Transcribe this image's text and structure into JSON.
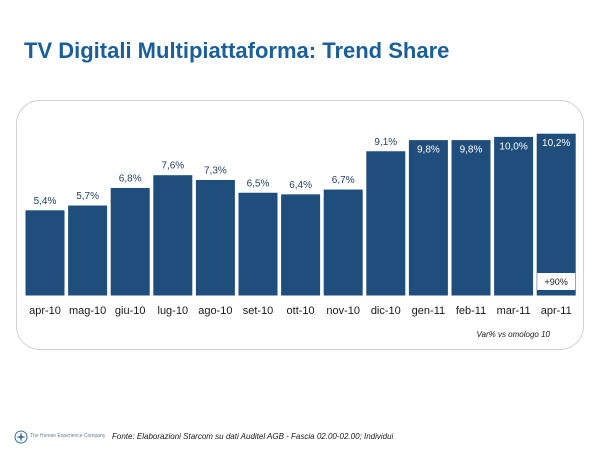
{
  "title": "TV Digitali Multipiattaforma: Trend Share",
  "chart_data": {
    "type": "bar",
    "categories": [
      "apr-10",
      "mag-10",
      "giu-10",
      "lug-10",
      "ago-10",
      "set-10",
      "ott-10",
      "nov-10",
      "dic-10",
      "gen-11",
      "feb-11",
      "mar-11",
      "apr-11"
    ],
    "values": [
      5.4,
      5.7,
      6.8,
      7.6,
      7.3,
      6.5,
      6.4,
      6.7,
      9.1,
      9.8,
      9.8,
      10.0,
      10.2
    ],
    "data_labels": [
      "5,4%",
      "5,7%",
      "6,8%",
      "7,6%",
      "7,3%",
      "6,5%",
      "6,4%",
      "6,7%",
      "9,1%",
      "9,8%",
      "9,8%",
      "10,0%",
      "10,2%"
    ],
    "ylim": [
      0,
      10.4
    ],
    "color": "#1f4e7d",
    "grid": false,
    "annotation": {
      "category": "apr-11",
      "text": "+90%"
    },
    "note": "Var% vs omologo 10"
  },
  "footer": {
    "logo_text": "The Human Experience Company",
    "source": "Fonte: Elaborazioni Starcom su dati Auditel AGB - Fascia 02.00-02.00; Individui"
  },
  "colors": {
    "title": "#1b5f9a",
    "bar": "#1f4e7d"
  }
}
